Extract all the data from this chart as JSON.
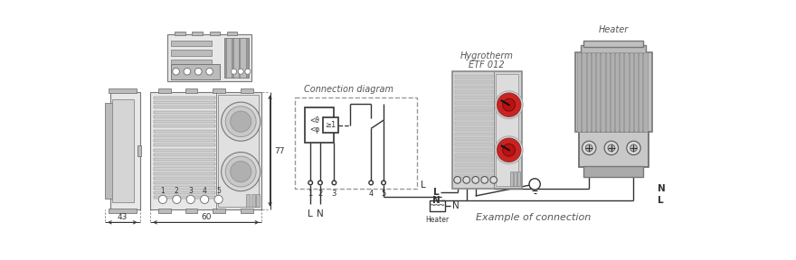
{
  "bg": "#ffffff",
  "lc": "#777777",
  "dc": "#333333",
  "tc": "#555555",
  "rc": "#cc2222",
  "lg": "#e8e8e8",
  "mg": "#bbbbbb",
  "dg": "#999999",
  "conn_diag": "Connection diagram",
  "hygro1": "Hygrotherm",
  "hygro2": "ETF 012",
  "heater": "Heater",
  "example": "Example of connection",
  "d43": "43",
  "d60": "60",
  "d77": "77"
}
